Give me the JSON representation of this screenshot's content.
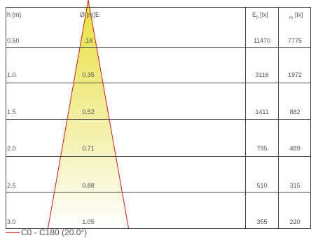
{
  "chart_data": {
    "type": "table",
    "headers": {
      "height": "h [m]",
      "diameter": "Ø [m]E",
      "e0": "E",
      "e0_sub": "0",
      "e0_unit": "[lx]",
      "em": "[lx]",
      "em_sub": "m"
    },
    "rows": [
      {
        "h": "0.50",
        "d": ".18",
        "e0": "11470",
        "em": "7775"
      },
      {
        "h": "1.0",
        "d": "0.35",
        "e0": "3116",
        "em": "1972"
      },
      {
        "h": "1.5",
        "d": "0.52",
        "e0": "1411",
        "em": "882"
      },
      {
        "h": "2.0",
        "d": "0.71",
        "e0": "795",
        "em": "489"
      },
      {
        "h": "2.5",
        "d": "0.88",
        "e0": "510",
        "em": "315"
      },
      {
        "h": "3.0",
        "d": "1.05",
        "e0": "355",
        "em": "220"
      }
    ],
    "beam": {
      "angle_deg": 20.0,
      "color": "#e01a1a",
      "fill_top": "#e8e23c",
      "fill_bottom": "#ffffff"
    },
    "legend": {
      "label": "C0 - C180 (20.0°)"
    }
  }
}
